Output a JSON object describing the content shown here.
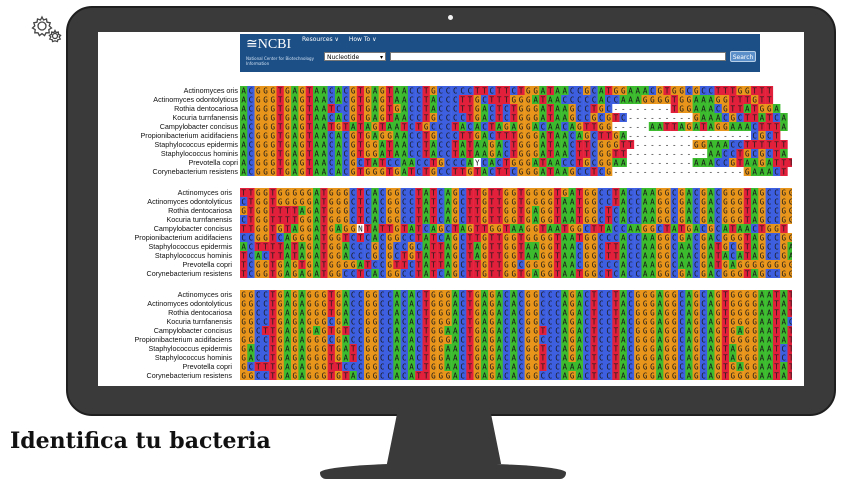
{
  "page_title": "Identifica tu bacteria",
  "icons": {
    "settings": "gear-icon"
  },
  "ncbi": {
    "logo": "≅NCBI",
    "subtitle": "National Center for Biotechnology Information",
    "menu": [
      "Resources ∨",
      "How To ∨"
    ],
    "database": "Nucleotide",
    "search_value": "",
    "search_button": "Search"
  },
  "colors": {
    "A": "#3bbb2d",
    "C": "#3d5fe0",
    "G": "#e8951c",
    "T": "#e3203c",
    "gap": "#ffffff"
  },
  "blocks": [
    {
      "labels": [
        "Actinomyces oris",
        "Actinomyces odontolyticus",
        "Rothia dentocariosa",
        "Kocuria turnfanensis",
        "Campylobacter concisus",
        "Propionibacterium acidifaciens",
        "Staphylococcus epidermis",
        "Staphylococcus hominis",
        "Prevotella copri",
        "Corynebacterium resistens"
      ],
      "rows": [
        "ACGGGTGAGTAACACGTGAGTAACCTGCCCCCTTCTTCTGGATAACCGCATGGAAACGTGGCGCCTTTGGTTT",
        "ACGGGTGAGTAACACGTGAGTAACCTACCCTTGCTTTGGGATAACCCCCACCAAAGGGGTGGAAAGGTTTGTT",
        "ACGGGTGAGTAATCCGTGAGTGACCTACCCTTGACTCTGGGATAAGCCTGC--------TGGAAACGTTATGGA",
        "ACGGGTGAGTAACACGTGAGTAACCTGCCCCTGACTCTGGGATAAGCCGCGTC---------GAAACGCTTATCA",
        "ACGGGTGAGTAATGTATAGTAATCTGCCCTACACTAGAGGACAACAGTTGG-----AATTAGATAGGAAACTTTA",
        "ACGGGTGAGTAACACGTGAGGAACCTGCCCTTGACTTTGGGATAACAGCTTGA-----------------CGCT",
        "ACGGGTGAGTAACACGTGGATAACCTACCTATAAGACTGGGATAACTTCGGGTT--------GGAAACCTTTTTT",
        "ACGGGTGAGTAACACGTGGATAACCTACCTATAAGACTGGGATAACTTCGGTT-----------AACCTGCGCTA",
        "ACGGGTGAGTAACACGCTATCCAACCTGCCCAYCACTGGGATAACCTGCGGAA---------AAACCGTAAGATTTA",
        "ACGGGTGAGTAACACGTGGGTGATCTGCCTTGTACTTCGGGATAAGCCTCG------------------GAAACT"
      ]
    },
    {
      "labels": [
        "Actinomyces oris",
        "Actinomyces odontolyticus",
        "Rothia dentocariosa",
        "Kocuria turnfanensis",
        "Campylobacter concisus",
        "Propionibacterium acidifaciens",
        "Staphylococcus epidermis",
        "Staphylococcus hominis",
        "Prevotella copri",
        "Corynebacterium resistens"
      ],
      "rows": [
        "TTGGTGGGGGATGGGCTCACGGCCTATCAGCTTGTTGGTGGGGTGATGGCCTACCAAGGCGACGACGGGTAGCCGG",
        "CTGGTGGGGGATGGGCTCACGGCCTATCAGCTTGTTGGTGGGGTAATGGCCTACCAAGGCGACGACGGGTAGCCGG",
        "GTGGTTTTAGATGGGCTCACGGCCTATCAGCTTGTTGGTGAGGTAATGGCTCACCAAGGCGACGACGGGTAGCCGG",
        "CTGGTTTTGGATGGGCTCACGGCCTATCAGCTTGTTGGTGAGGTAATGGCTCACCAAGGCGACGACGGGTAGCCGG",
        "TTGGTGTAGGATGAGGNTATTGTATCAGCTAGTTGGTAAGGTAATGGCTTACCAAGGCTATGACGCATAACTGGT",
        "CCGGTCAGGGATGGTCTCACGGCCTATCAGCTTGTTGGTGGGGTAATGGCCCACCAAGGCGACGACGGGTAGCCGG",
        "ACTTTTATAGATGGACCCGCGCCGCATTAGCTAGTTGGTAAGGTAACGGCTTACCAAGGCAACGATGCGTAGCCGA",
        "TCACTTATAGATGGACCCGCGCTGTATTAGCTAGTTGGTAAGGTAACGGCTTACCAAGGCAACGATACATAGCCGA",
        "TCGGTGAGTGATGGGGATCCGTTCTATTAGCTTGTTGGCGGGGTAACGGCCCACCAAGGCAACGATGAGGGGGGGG",
        "TCGGTGAGAGATGGCCTCACGGCCTATCAGCTTGTTGGTGAGGTAATGGCTCACCAAGGCGACGACGGGTAGCCGG"
      ]
    },
    {
      "labels": [
        "Actinomyces oris",
        "Actinomyces odontolyticus",
        "Rothia dentocariosa",
        "Kocuria turnfanensis",
        "Campylobacter concisus",
        "Propionibacterium acidifaciens",
        "Staphylococcus epidermis",
        "Staphylococcus hominis",
        "Prevotella copri",
        "Corynebacterium resistens"
      ],
      "rows": [
        "GGCCTGAGAGGGTGACCGGCCACACTGGGACTGAGACACGGCCCAGACTCCTACGGGAGGCAGCAGTGGGGAATAT",
        "GGCCTGAGAGGGTGACCGGCCACACTGGGACTGAGACACGGCCCAGACTCCTACGGGAGGCAGCAGTGGGGAATAT",
        "GGCCTGAGAGGGTGACCGGCCACACTGGGACTGAGACACGGCCCAGACTCCTACGGGAGGCAGCAGTGGGGAATAT",
        "GGCCTGAGAGGGCGACCGGCCACACTGGGACTGAGACACGGCCCAGACTCCTACGGGAGGCAGCAGTGGGGAATAC",
        "GGCTTGAGAGAGTGTCCGGCCACACTGGAACTGAGACACGGTCCAGACTCCTACGGGAGGCAGCAGTGAGGAATAT",
        "GGCCTGAGAGGGCGACCGGCCACACTGGGACTGAGACACGGCCCAGACTCCTACGGGAGGCAGCAGTGGGGAATAT",
        "GACCTGAGAGGGTGATCGGCCACACTGGAACTGAGACACGGTCCAGACTCCTACGGGAGGCAGCAGTAGGGAATCT",
        "GACCTGAGAGGGTGATCGGCCACACTGGAACTGAGACACGGTCCAGACTCCTACGGGAGGCAGCAGTAGGGAATCT",
        "GCTTTGAGAGGGTTCCCGGCCACACTGGAACTGAGACACGGTCCAAACTCCTACGGGAGGCAGCAGTGAGGAATAT",
        "GGCCTGAGAGGGTGTACGGCCACATTGGGACTGAGACACGGCCCAGACTCCTACGGGAGGCAGCAGTGGGGAATAT"
      ]
    }
  ]
}
